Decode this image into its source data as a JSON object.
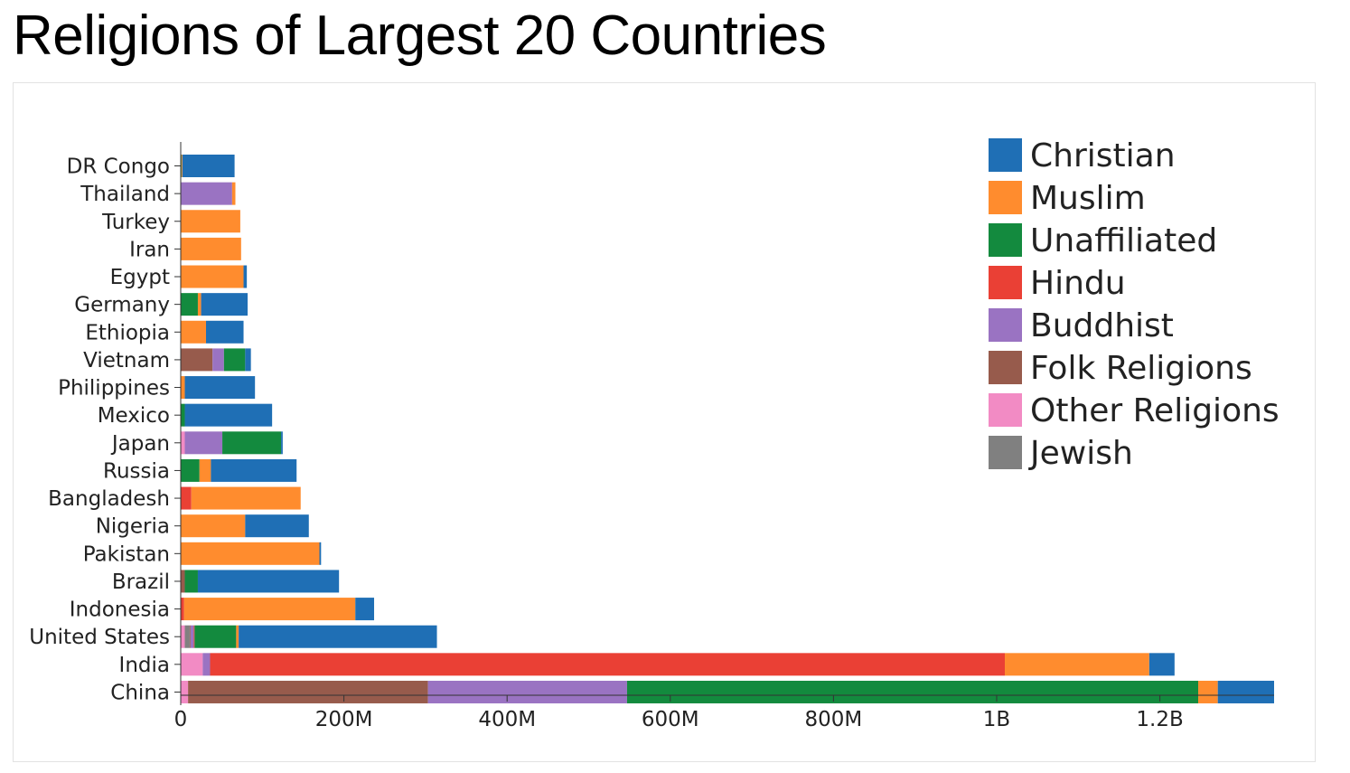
{
  "page": {
    "title": "Religions of Largest 20 Countries"
  },
  "chart_data": {
    "type": "bar",
    "orientation": "horizontal",
    "stacked": true,
    "title": "Religions of Largest 20 Countries",
    "xlabel": "",
    "ylabel": "",
    "xlim": [
      0,
      1340000000
    ],
    "x_ticks": [
      {
        "value": 0,
        "label": "0"
      },
      {
        "value": 200000000,
        "label": "200M"
      },
      {
        "value": 400000000,
        "label": "400M"
      },
      {
        "value": 600000000,
        "label": "600M"
      },
      {
        "value": 800000000,
        "label": "800M"
      },
      {
        "value": 1000000000,
        "label": "1B"
      },
      {
        "value": 1200000000,
        "label": "1.2B"
      }
    ],
    "legend_position": "top-right",
    "grid": false,
    "categories": [
      "DR Congo",
      "Thailand",
      "Turkey",
      "Iran",
      "Egypt",
      "Germany",
      "Ethiopia",
      "Vietnam",
      "Philippines",
      "Mexico",
      "Japan",
      "Russia",
      "Bangladesh",
      "Nigeria",
      "Pakistan",
      "Brazil",
      "Indonesia",
      "United States",
      "India",
      "China"
    ],
    "stack_order": [
      "Other Religions",
      "Jewish",
      "Folk Religions",
      "Buddhist",
      "Hindu",
      "Unaffiliated",
      "Muslim",
      "Christian"
    ],
    "series": [
      {
        "name": "Christian",
        "color": "#1f6fb5",
        "values": [
          64000000,
          0,
          0,
          0,
          4000000,
          57000000,
          46000000,
          7000000,
          86000000,
          107000000,
          2000000,
          105000000,
          0,
          78000000,
          2000000,
          173000000,
          23000000,
          243000000,
          31000000,
          69000000
        ]
      },
      {
        "name": "Muslim",
        "color": "#ff8c2e",
        "values": [
          1000000,
          4000000,
          73000000,
          74000000,
          77000000,
          4000000,
          31000000,
          0,
          5000000,
          0,
          0,
          14000000,
          134000000,
          79000000,
          170000000,
          0,
          210000000,
          3000000,
          177000000,
          24000000
        ]
      },
      {
        "name": "Unaffiliated",
        "color": "#138a3e",
        "values": [
          1000000,
          0,
          0,
          0,
          0,
          21000000,
          0,
          26000000,
          0,
          5000000,
          72000000,
          23000000,
          0,
          0,
          0,
          16000000,
          0,
          51000000,
          0,
          700000000
        ]
      },
      {
        "name": "Hindu",
        "color": "#ea4035",
        "values": [
          0,
          0,
          0,
          0,
          0,
          0,
          0,
          0,
          0,
          0,
          0,
          0,
          13000000,
          0,
          0,
          0,
          4000000,
          1000000,
          974000000,
          0
        ]
      },
      {
        "name": "Buddhist",
        "color": "#9a73c2",
        "values": [
          0,
          63000000,
          0,
          0,
          0,
          0,
          0,
          14000000,
          0,
          0,
          46000000,
          0,
          0,
          0,
          0,
          0,
          0,
          4000000,
          9000000,
          244000000
        ]
      },
      {
        "name": "Folk Religions",
        "color": "#975b4c",
        "values": [
          0,
          0,
          0,
          0,
          0,
          0,
          0,
          39000000,
          0,
          0,
          0,
          0,
          0,
          0,
          0,
          5000000,
          0,
          1000000,
          0,
          294000000
        ]
      },
      {
        "name": "Other Religions",
        "color": "#f28bc4",
        "values": [
          0,
          0,
          0,
          0,
          0,
          0,
          0,
          0,
          0,
          0,
          5000000,
          0,
          0,
          0,
          0,
          0,
          0,
          5000000,
          27000000,
          9000000
        ]
      },
      {
        "name": "Jewish",
        "color": "#808080",
        "values": [
          0,
          0,
          0,
          0,
          0,
          0,
          0,
          0,
          0,
          0,
          0,
          0,
          0,
          0,
          0,
          0,
          0,
          6000000,
          0,
          0
        ]
      }
    ]
  }
}
